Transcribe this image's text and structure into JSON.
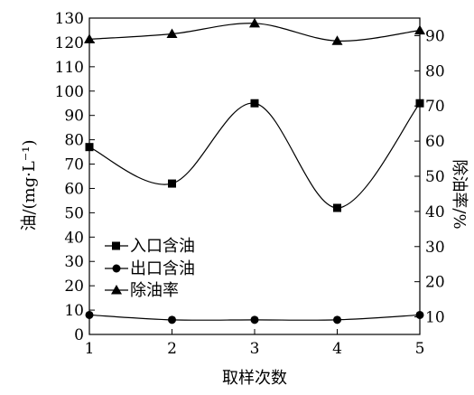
{
  "chart_data": {
    "type": "line",
    "categories": [
      "1",
      "2",
      "3",
      "4",
      "5"
    ],
    "xlabel": "取样次数",
    "ylabel": "油/(mg·L⁻¹)",
    "y2label": "除油率/%",
    "ylim": [
      0,
      130
    ],
    "y2lim": [
      5,
      95
    ],
    "yticks": [
      0,
      10,
      20,
      30,
      40,
      50,
      60,
      70,
      80,
      90,
      100,
      110,
      120,
      130
    ],
    "y2ticks": [
      10,
      20,
      30,
      40,
      50,
      60,
      70,
      80,
      90
    ],
    "legend_position": "lower-left",
    "series": [
      {
        "name": "入口含油",
        "axis": "left",
        "marker": "square",
        "values": [
          77,
          62,
          95,
          52,
          95
        ]
      },
      {
        "name": "出口含油",
        "axis": "left",
        "marker": "circle",
        "values": [
          8,
          6,
          6,
          6,
          8
        ]
      },
      {
        "name": "除油率",
        "axis": "right",
        "marker": "triangle",
        "values": [
          89,
          90.5,
          93.5,
          88.5,
          91.5
        ]
      }
    ]
  }
}
